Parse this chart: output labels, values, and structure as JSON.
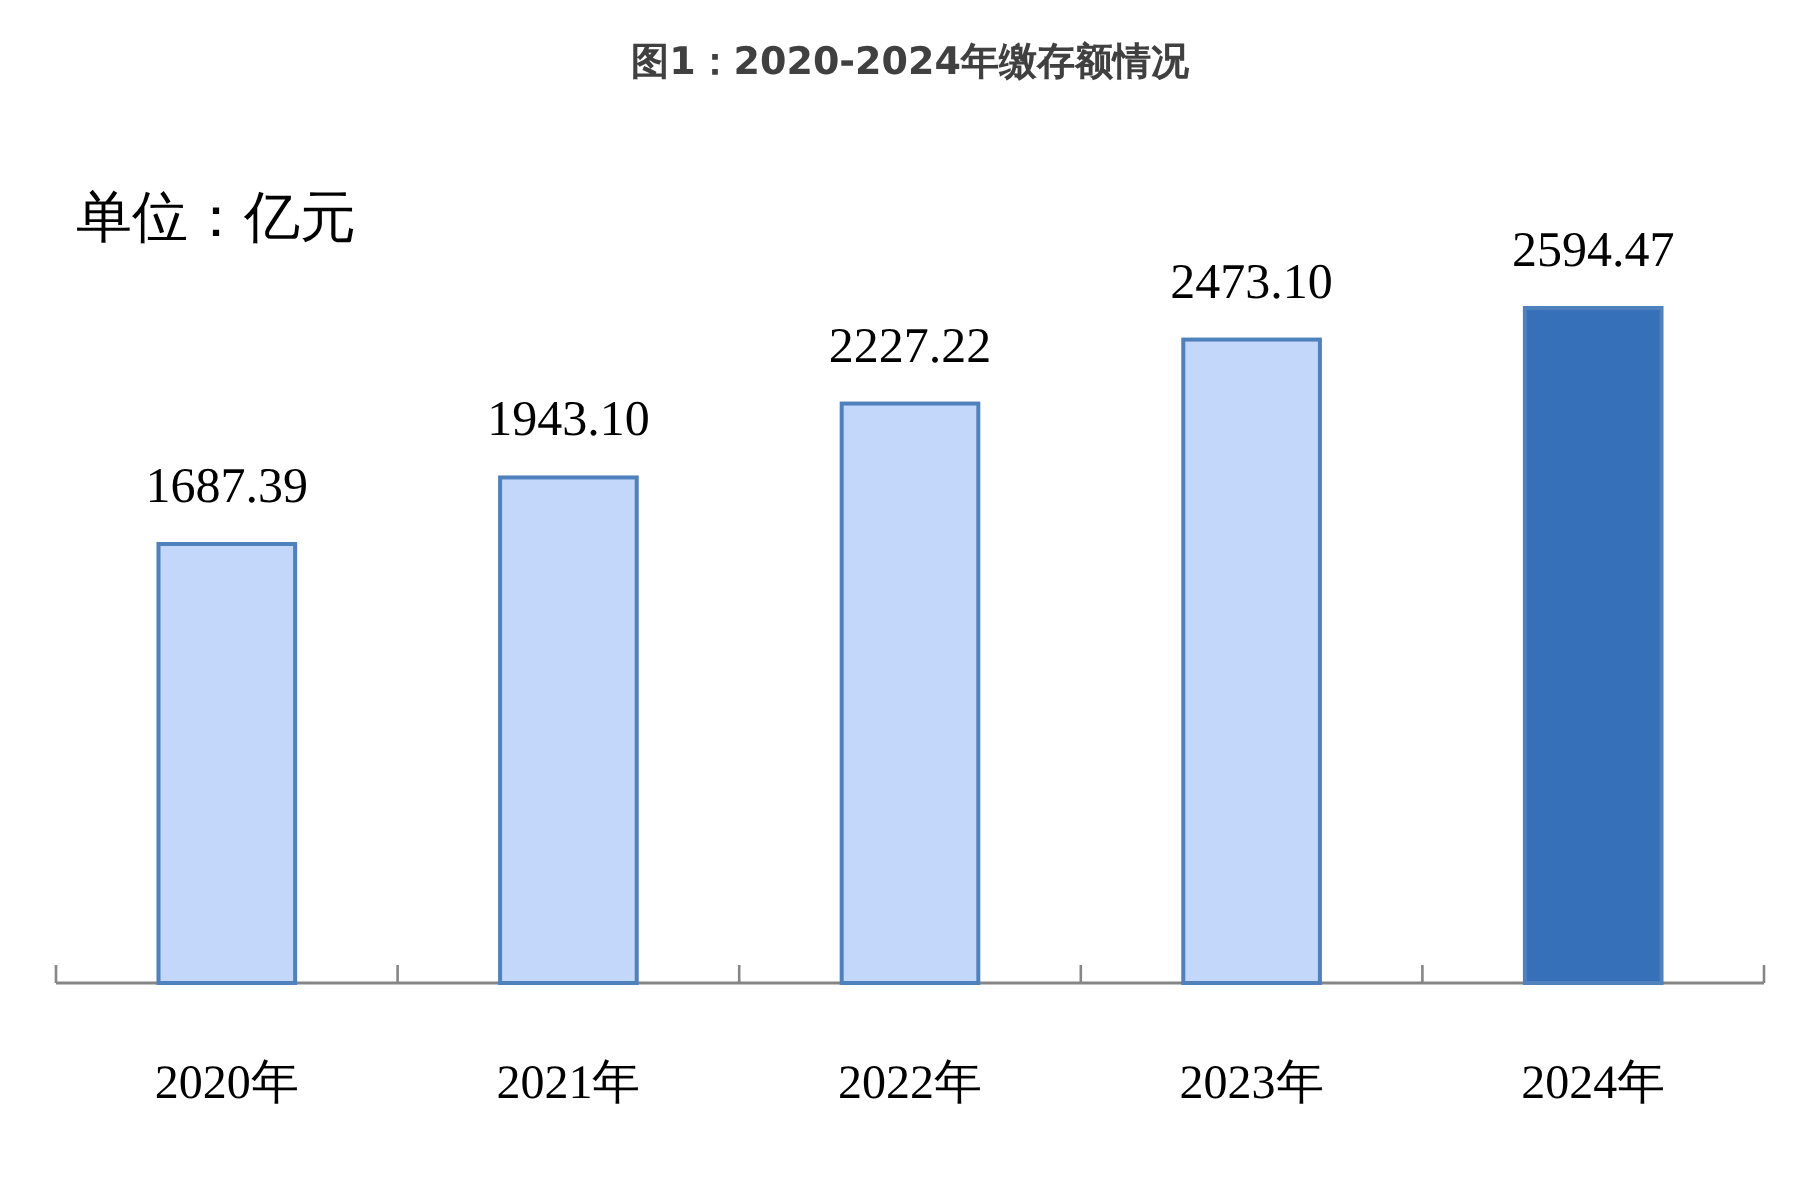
{
  "chart_data": {
    "type": "bar",
    "title": "图1：2020-2024年缴存额情况",
    "annotations": [
      "单位：亿元"
    ],
    "categories": [
      "2020年",
      "2021年",
      "2022年",
      "2023年",
      "2024年"
    ],
    "values": [
      1687.39,
      1943.1,
      2227.22,
      2473.1,
      2594.47
    ],
    "value_labels": [
      "1687.39",
      "1943.10",
      "2227.22",
      "2473.10",
      "2594.47"
    ],
    "colors": [
      "#c3d7fa",
      "#c3d7fa",
      "#c3d7fa",
      "#c3d7fa",
      "#3570b8"
    ]
  }
}
